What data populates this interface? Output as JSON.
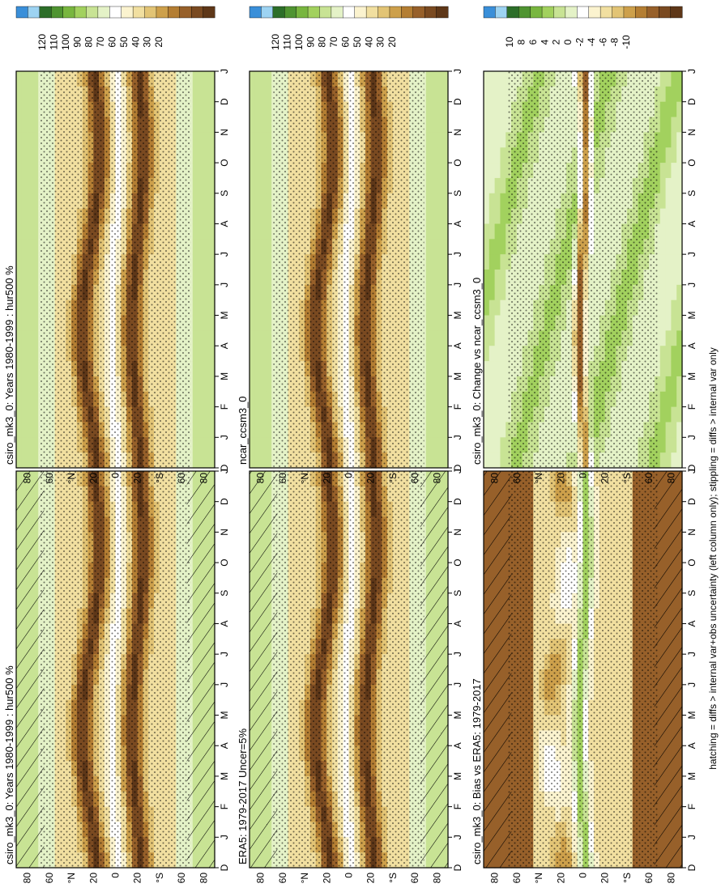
{
  "footnote": "hatching = diffs > internal var+obs uncertainty (left column only); stippling = diffs > internal var only",
  "month_ticks": [
    "D",
    "J",
    "F",
    "M",
    "A",
    "M",
    "J",
    "J",
    "A",
    "S",
    "O",
    "N",
    "D",
    "J"
  ],
  "lat_ticks": [
    "80",
    "60",
    "°N",
    "20",
    "0",
    "20",
    "°S",
    "60",
    "80"
  ],
  "colorbars": {
    "abs": {
      "labels": [
        "120",
        "110",
        "100",
        "90",
        "80",
        "70",
        "60",
        "50",
        "40",
        "30",
        "20"
      ],
      "colors": [
        "#3a8fd9",
        "#9dd3f2",
        "#2d6e29",
        "#4f9431",
        "#78b63f",
        "#a2d15e",
        "#c8e394",
        "#e4f2c7",
        "#ffffff",
        "#fbf3cf",
        "#f1dfa0",
        "#e2c475",
        "#cda04b",
        "#b47e33",
        "#97602a",
        "#7a4a21",
        "#5e3718"
      ]
    },
    "diff": {
      "labels": [
        "10",
        "8",
        "6",
        "4",
        "2",
        "0",
        "-2",
        "-4",
        "-6",
        "-8",
        "-10"
      ],
      "colors": [
        "#3a8fd9",
        "#9dd3f2",
        "#2d6e29",
        "#4f9431",
        "#78b63f",
        "#a2d15e",
        "#c8e394",
        "#e4f2c7",
        "#ffffff",
        "#fbf3cf",
        "#f1dfa0",
        "#e2c475",
        "#cda04b",
        "#b47e33",
        "#97602a",
        "#7a4a21",
        "#5e3718"
      ]
    }
  },
  "chart_data": [
    {
      "type": "heatmap",
      "title": "csiro_mk3_0: Years 1980-1999 : hur500 %",
      "variable": "hur500",
      "units": "%",
      "x": "month",
      "y": "latitude",
      "ylim": [
        -90,
        90
      ],
      "colorbar": "abs",
      "hatching": true,
      "stippling": true
    },
    {
      "type": "heatmap",
      "title": "ERA5: 1979-2017 Uncer=5%",
      "variable": "hur500",
      "units": "%",
      "x": "month",
      "y": "latitude",
      "ylim": [
        -90,
        90
      ],
      "colorbar": "abs",
      "hatching": true,
      "stippling": true
    },
    {
      "type": "heatmap",
      "title": "csiro_mk3_0: Bias vs ERA5: 1979-2017",
      "variable": "hur500",
      "units": "%",
      "x": "month",
      "y": "latitude",
      "ylim": [
        -90,
        90
      ],
      "colorbar": "diff",
      "hatching": true,
      "stippling": true
    },
    {
      "type": "heatmap",
      "title": "csiro_mk3_0: Years 1980-1999 : hur500 %",
      "variable": "hur500",
      "units": "%",
      "x": "month",
      "y": "latitude",
      "ylim": [
        -90,
        90
      ],
      "colorbar": "abs",
      "hatching": false,
      "stippling": true
    },
    {
      "type": "heatmap",
      "title": "ncar_ccsm3_0",
      "variable": "hur500",
      "units": "%",
      "x": "month",
      "y": "latitude",
      "ylim": [
        -90,
        90
      ],
      "colorbar": "abs",
      "hatching": false,
      "stippling": true
    },
    {
      "type": "heatmap",
      "title": "csiro_mk3_0: Change vs ncar_ccsm3_0",
      "variable": "hur500",
      "units": "%",
      "x": "month",
      "y": "latitude",
      "ylim": [
        -90,
        90
      ],
      "colorbar": "diff",
      "hatching": false,
      "stippling": true
    }
  ]
}
